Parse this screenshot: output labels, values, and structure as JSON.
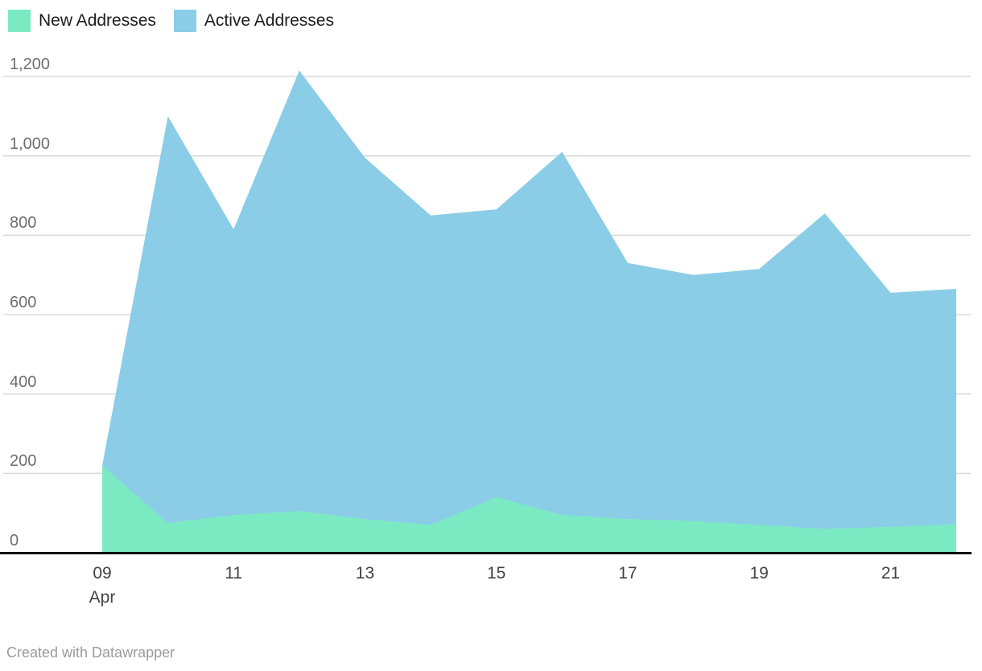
{
  "legend": {
    "items": [
      {
        "label": "New Addresses",
        "color": "#7BEAC3"
      },
      {
        "label": "Active Addresses",
        "color": "#8BCDE7"
      }
    ]
  },
  "footer": {
    "credit": "Created with Datawrapper"
  },
  "chart_data": {
    "type": "area",
    "mode": "overlapping",
    "title": "",
    "xlabel": "",
    "ylabel": "",
    "x": [
      "Apr 09",
      "Apr 10",
      "Apr 11",
      "Apr 12",
      "Apr 13",
      "Apr 14",
      "Apr 15",
      "Apr 16",
      "Apr 17",
      "Apr 18",
      "Apr 19",
      "Apr 20",
      "Apr 21",
      "Apr 22"
    ],
    "series": [
      {
        "name": "Active Addresses",
        "color": "#8BCDE7",
        "values": [
          220,
          1100,
          815,
          1215,
          995,
          850,
          865,
          1010,
          730,
          700,
          715,
          855,
          655,
          665
        ]
      },
      {
        "name": "New Addresses",
        "color": "#7BEAC3",
        "values": [
          220,
          75,
          95,
          105,
          85,
          70,
          140,
          95,
          85,
          80,
          70,
          60,
          65,
          72
        ]
      }
    ],
    "ylim": [
      0,
      1200
    ],
    "y_ticks": [
      {
        "value": 0,
        "label": "0"
      },
      {
        "value": 200,
        "label": "200"
      },
      {
        "value": 400,
        "label": "400"
      },
      {
        "value": 600,
        "label": "600"
      },
      {
        "value": 800,
        "label": "800"
      },
      {
        "value": 1000,
        "label": "1,000"
      },
      {
        "value": 1200,
        "label": "1,200"
      }
    ],
    "x_ticks": [
      {
        "index": 0,
        "label": "09",
        "sublabel": "Apr"
      },
      {
        "index": 2,
        "label": "11"
      },
      {
        "index": 4,
        "label": "13"
      },
      {
        "index": 6,
        "label": "15"
      },
      {
        "index": 8,
        "label": "17"
      },
      {
        "index": 10,
        "label": "19"
      },
      {
        "index": 12,
        "label": "21"
      }
    ],
    "grid": true,
    "legend_position": "top-left",
    "grid_color": "#dadada",
    "baseline_color": "#111111"
  }
}
